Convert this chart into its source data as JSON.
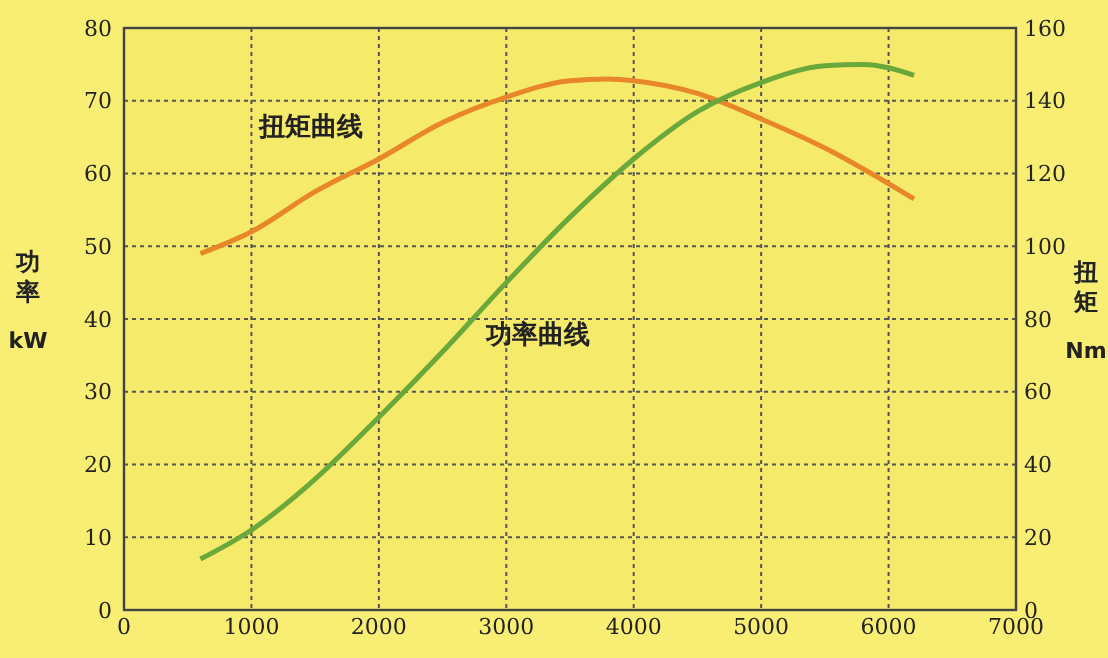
{
  "chart_data": {
    "type": "line",
    "ylabel": "功率 kW",
    "y2label": "扭矩 Nm",
    "x": [
      600,
      1000,
      1500,
      2000,
      2500,
      3000,
      3500,
      4000,
      4500,
      5000,
      5500,
      5800,
      6200
    ],
    "series": [
      {
        "name": "扭矩曲线",
        "color": "#e8862a",
        "axis": "y2",
        "x": [
          600,
          1000,
          1500,
          2000,
          2500,
          3000,
          3500,
          3800,
          4000,
          4500,
          5000,
          5500,
          6200
        ],
        "values": [
          98,
          104,
          115,
          124,
          134,
          141,
          145.5,
          146,
          145.5,
          142,
          135,
          127,
          113
        ]
      },
      {
        "name": "功率曲线",
        "color": "#6aa83c",
        "values": [
          7,
          11,
          18,
          26.5,
          35.5,
          45,
          54,
          62,
          68.5,
          72.5,
          74.8,
          75,
          73.5
        ]
      }
    ],
    "xlim": [
      0,
      7000
    ],
    "xticks": [
      0,
      1000,
      2000,
      3000,
      4000,
      5000,
      6000,
      7000
    ],
    "ylim": [
      0,
      80
    ],
    "yticks": [
      0,
      10,
      20,
      30,
      40,
      50,
      60,
      70,
      80
    ],
    "y2lim": [
      0,
      160
    ],
    "y2ticks": [
      0,
      20,
      40,
      60,
      80,
      100,
      120,
      140,
      160
    ],
    "grid": true,
    "line_style": "solid"
  }
}
